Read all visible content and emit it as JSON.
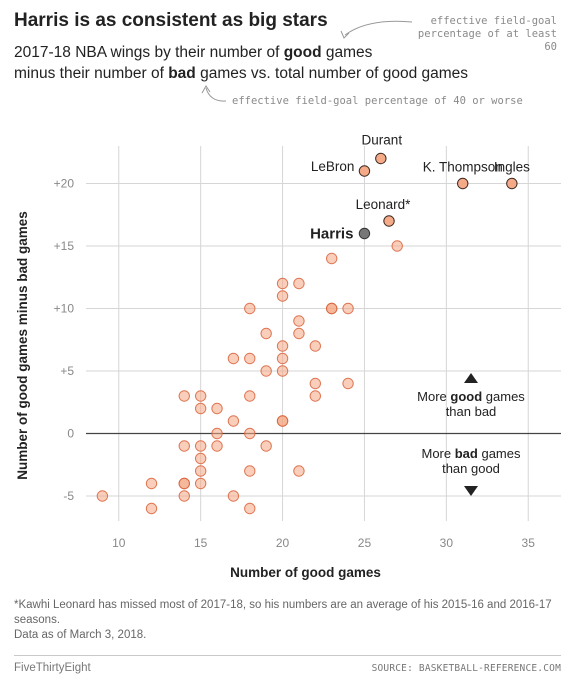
{
  "header": {
    "title": "Harris is as consistent as big stars",
    "subtitle_line1_a": "2017-18 NBA wings by their number of ",
    "subtitle_line1_b": "good",
    "subtitle_line1_c": " games",
    "subtitle_line2_a": "minus their number of ",
    "subtitle_line2_b": "bad",
    "subtitle_line2_c": " games vs. total number of good games"
  },
  "annotations": {
    "good_def": "effective field-goal percentage of at least 60",
    "bad_def": "effective field-goal percentage of 40 or worse"
  },
  "chart_data": {
    "type": "scatter",
    "xlabel": "Number of good games",
    "ylabel": "Number of good games minus bad games",
    "xlim": [
      8,
      37
    ],
    "ylim": [
      -7,
      23
    ],
    "xticks": [
      10,
      15,
      20,
      25,
      30,
      35
    ],
    "xtick_labels": [
      "10",
      "15",
      "20",
      "25",
      "30",
      "35"
    ],
    "yticks": [
      -5,
      0,
      5,
      10,
      15,
      20
    ],
    "ytick_labels": [
      "-5",
      "0",
      "+5",
      "+10",
      "+15",
      "+20"
    ],
    "grid": true,
    "colors": {
      "point": "#f4a582",
      "point_stroke": "#d9623b",
      "highlight": "#777777",
      "highlight_stroke": "#333333"
    },
    "labeled_points": [
      {
        "label": "Durant",
        "x": 26,
        "y": 22
      },
      {
        "label": "LeBron",
        "x": 25,
        "y": 21
      },
      {
        "label": "K. Thompson",
        "x": 31,
        "y": 20
      },
      {
        "label": "Ingles",
        "x": 34,
        "y": 20
      },
      {
        "label": "Leonard*",
        "x": 26.5,
        "y": 17
      },
      {
        "label": "Harris",
        "x": 25,
        "y": 16,
        "highlight": true
      }
    ],
    "points": [
      [
        27,
        15
      ],
      [
        23,
        14
      ],
      [
        20,
        12
      ],
      [
        21,
        12
      ],
      [
        20,
        11
      ],
      [
        18,
        10
      ],
      [
        23,
        10
      ],
      [
        23,
        10
      ],
      [
        24,
        10
      ],
      [
        21,
        9
      ],
      [
        19,
        8
      ],
      [
        21,
        8
      ],
      [
        20,
        7
      ],
      [
        22,
        7
      ],
      [
        17,
        6
      ],
      [
        18,
        6
      ],
      [
        20,
        6
      ],
      [
        19,
        5
      ],
      [
        20,
        5
      ],
      [
        22,
        4
      ],
      [
        24,
        4
      ],
      [
        14,
        3
      ],
      [
        15,
        3
      ],
      [
        18,
        3
      ],
      [
        22,
        3
      ],
      [
        15,
        2
      ],
      [
        16,
        2
      ],
      [
        17,
        1
      ],
      [
        20,
        1
      ],
      [
        20,
        1
      ],
      [
        16,
        0
      ],
      [
        18,
        0
      ],
      [
        14,
        -1
      ],
      [
        15,
        -1
      ],
      [
        16,
        -1
      ],
      [
        19,
        -1
      ],
      [
        15,
        -2
      ],
      [
        18,
        -3
      ],
      [
        21,
        -3
      ],
      [
        15,
        -3
      ],
      [
        12,
        -4
      ],
      [
        14,
        -4
      ],
      [
        14,
        -4
      ],
      [
        15,
        -4
      ],
      [
        9,
        -5
      ],
      [
        14,
        -5
      ],
      [
        17,
        -5
      ],
      [
        12,
        -6
      ],
      [
        18,
        -6
      ]
    ],
    "direction_labels": {
      "up_line1_a": "More ",
      "up_line1_b": "good",
      "up_line1_c": " games",
      "up_line2": "than bad",
      "down_line1_a": "More ",
      "down_line1_b": "bad",
      "down_line1_c": " games",
      "down_line2": "than good"
    }
  },
  "footnote": {
    "line1": "*Kawhi Leonard has missed most of 2017-18, so his numbers are an average of his 2015-16 and 2016-17 seasons.",
    "line2": "Data as of March 3, 2018."
  },
  "footer": {
    "brand": "FiveThirtyEight",
    "source": "SOURCE: BASKETBALL-REFERENCE.COM"
  }
}
